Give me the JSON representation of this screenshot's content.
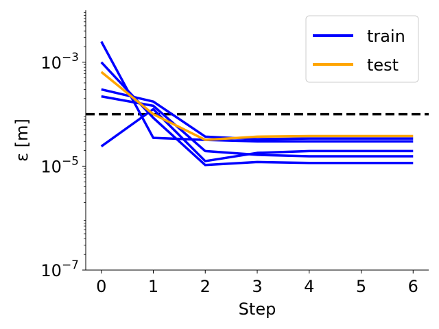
{
  "chart_data": {
    "type": "line",
    "xlabel": "Step",
    "ylabel": "ε [m]",
    "x": [
      0,
      1,
      2,
      3,
      4,
      5,
      6
    ],
    "xticks": [
      "0",
      "1",
      "2",
      "3",
      "4",
      "5",
      "6"
    ],
    "yscale": "log",
    "ylim": [
      1e-07,
      0.01
    ],
    "yticks": [
      {
        "value": 1e-07,
        "base": "10",
        "exp": "−7"
      },
      {
        "value": 1e-05,
        "base": "10",
        "exp": "−5"
      },
      {
        "value": 0.001,
        "base": "10",
        "exp": "−3"
      }
    ],
    "xlim": [
      -0.3,
      6.3
    ],
    "grid": false,
    "legend_position": "top-right",
    "reference_line": {
      "y": 0.0001,
      "style": "dashed",
      "color": "#000000"
    },
    "series": [
      {
        "name": "train",
        "color": "#0000ff",
        "values": [
          0.0025,
          3.5e-05,
          3.2e-05,
          3e-05,
          3e-05,
          3e-05,
          3e-05
        ]
      },
      {
        "color": "#0000ff",
        "values": [
          0.001,
          8.5e-05,
          1.05e-05,
          1.2e-05,
          1.15e-05,
          1.15e-05,
          1.15e-05
        ]
      },
      {
        "color": "#0000ff",
        "values": [
          0.0003,
          0.000175,
          3.7e-05,
          3.3e-05,
          3.4e-05,
          3.4e-05,
          3.4e-05
        ]
      },
      {
        "color": "#0000ff",
        "values": [
          0.00022,
          0.000145,
          1.95e-05,
          1.65e-05,
          1.55e-05,
          1.55e-05,
          1.55e-05
        ]
      },
      {
        "color": "#0000ff",
        "values": [
          2.4e-05,
          0.000125,
          1.25e-05,
          1.8e-05,
          1.95e-05,
          1.95e-05,
          1.95e-05
        ]
      },
      {
        "name": "test",
        "color": "#ffa500",
        "values": [
          0.00065,
          0.0001,
          3.2e-05,
          3.7e-05,
          3.8e-05,
          3.8e-05,
          3.8e-05
        ]
      }
    ]
  }
}
